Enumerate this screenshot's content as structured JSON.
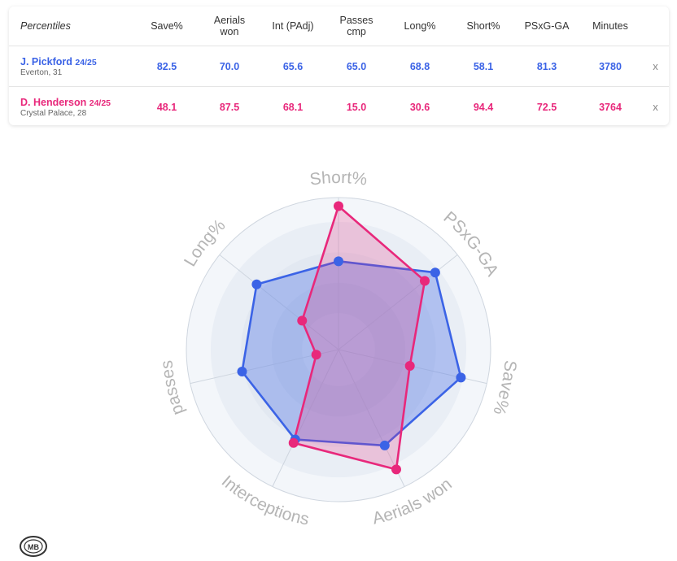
{
  "table": {
    "header_label": "Percentiles",
    "columns": [
      "Save%",
      "Aerials won",
      "Int (PAdj)",
      "Passes cmp",
      "Long%",
      "Short%",
      "PSxG-GA",
      "Minutes"
    ],
    "remove_label": "x",
    "players": [
      {
        "name": "J. Pickford",
        "season": "24/25",
        "club": "Everton, 31",
        "values": [
          "82.5",
          "70.0",
          "65.6",
          "65.0",
          "68.8",
          "58.1",
          "81.3",
          "3780"
        ]
      },
      {
        "name": "D. Henderson",
        "season": "24/25",
        "club": "Crystal Palace, 28",
        "values": [
          "48.1",
          "87.5",
          "68.1",
          "15.0",
          "30.6",
          "94.4",
          "72.5",
          "3764"
        ]
      }
    ]
  },
  "colors": {
    "pickford": "#3b63e6",
    "henderson": "#e8287b"
  },
  "chart_data": {
    "type": "radar",
    "axes": [
      "Short%",
      "PSxG-GA",
      "Save%",
      "Aerials won",
      "Interceptions",
      "passes",
      "Long%"
    ],
    "range": [
      0,
      100
    ],
    "series": [
      {
        "name": "J. Pickford",
        "values": [
          58.1,
          81.3,
          82.5,
          70.0,
          65.6,
          65.0,
          68.8
        ]
      },
      {
        "name": "D. Henderson",
        "values": [
          94.4,
          72.5,
          48.1,
          87.5,
          68.1,
          15.0,
          30.6
        ]
      }
    ]
  },
  "logo_text": "MB"
}
